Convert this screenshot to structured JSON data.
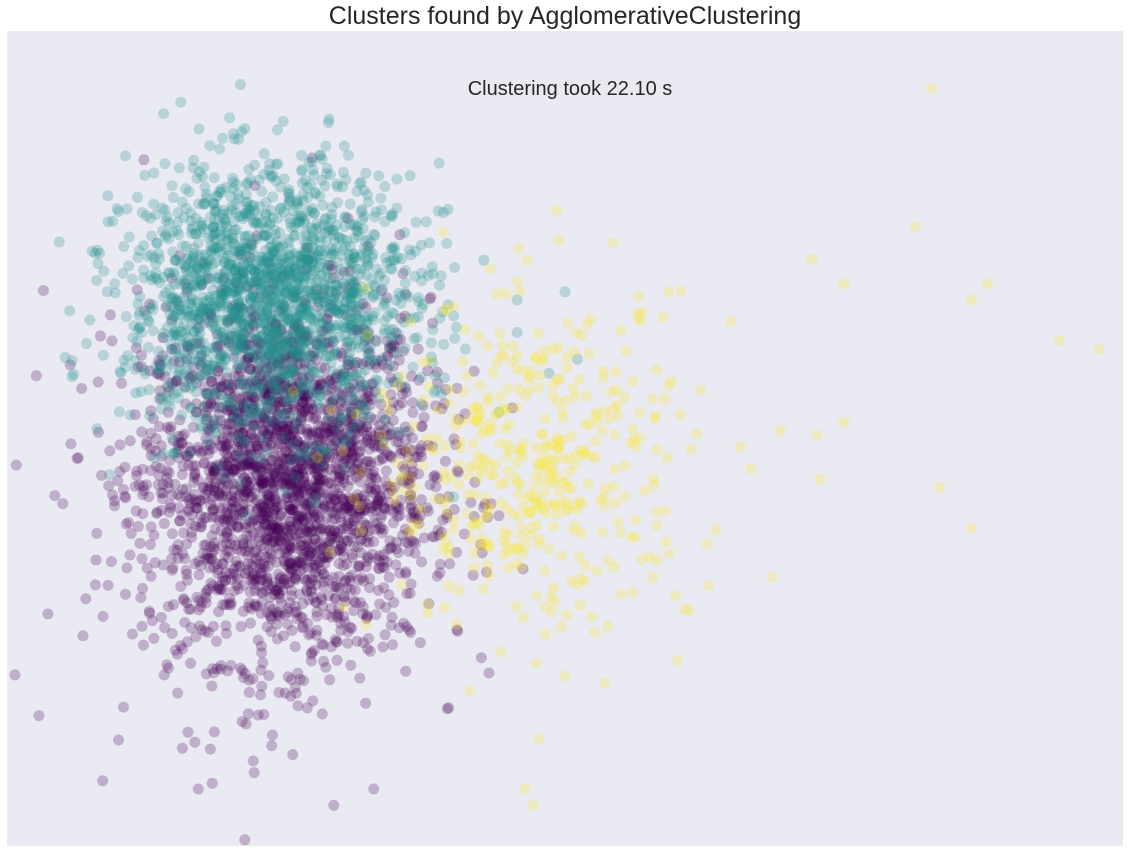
{
  "chart_data": {
    "type": "scatter",
    "title": "Clusters found by AgglomerativeClustering",
    "annotation": "Clustering took 22.10 s",
    "xlabel": "",
    "ylabel": "",
    "axes_visible": false,
    "grid": false,
    "xlim": [
      -0.6,
      0.8
    ],
    "ylim": [
      -0.45,
      0.55
    ],
    "background": "#eaeaf2",
    "point_alpha": 0.25,
    "series": [
      {
        "color": "#440154",
        "center": [
          -0.25,
          0.0
        ],
        "count": 2500,
        "spread": [
          0.09,
          0.11
        ],
        "points": [
          [
            -0.59,
            -0.24
          ],
          [
            -0.56,
            -0.29
          ],
          [
            -0.54,
            -0.02
          ],
          [
            -0.53,
            -0.03
          ],
          [
            -0.48,
            -0.37
          ],
          [
            -0.46,
            -0.32
          ],
          [
            -0.38,
            -0.33
          ],
          [
            -0.36,
            -0.38
          ],
          [
            -0.34,
            -0.31
          ],
          [
            -0.3,
            -0.3
          ],
          [
            -0.29,
            -0.36
          ],
          [
            -0.14,
            -0.38
          ],
          [
            -0.19,
            -0.4
          ]
        ]
      },
      {
        "color": "#21918c",
        "center": [
          -0.27,
          0.22
        ],
        "count": 1800,
        "spread": [
          0.09,
          0.08
        ],
        "points": [
          [
            -0.34,
            0.37
          ],
          [
            -0.38,
            0.34
          ],
          [
            -0.42,
            0.32
          ],
          [
            -0.36,
            0.29
          ],
          [
            -0.3,
            0.34
          ],
          [
            -0.26,
            0.32
          ],
          [
            -0.2,
            0.32
          ],
          [
            -0.16,
            0.31
          ],
          [
            -0.07,
            0.29
          ],
          [
            0.04,
            0.22
          ],
          [
            0.1,
            0.23
          ],
          [
            0.04,
            0.18
          ],
          [
            0.08,
            0.13
          ]
        ]
      },
      {
        "color": "#fde725",
        "center": [
          0.06,
          0.02
        ],
        "count": 450,
        "spread": [
          0.1,
          0.1
        ],
        "points": [
          [
            0.56,
            0.48
          ],
          [
            0.54,
            0.31
          ],
          [
            0.63,
            0.24
          ],
          [
            0.61,
            0.22
          ],
          [
            0.77,
            0.16
          ],
          [
            0.72,
            0.17
          ],
          [
            0.45,
            0.07
          ],
          [
            0.45,
            0.24
          ],
          [
            0.41,
            0.27
          ],
          [
            0.37,
            0.06
          ],
          [
            0.32,
            0.04
          ],
          [
            0.42,
            0.0
          ],
          [
            0.57,
            -0.01
          ],
          [
            0.61,
            -0.06
          ],
          [
            0.36,
            -0.12
          ],
          [
            0.28,
            -0.13
          ],
          [
            0.15,
            -0.25
          ],
          [
            0.25,
            -0.16
          ],
          [
            0.06,
            -0.4
          ],
          [
            0.05,
            -0.38
          ],
          [
            0.09,
            0.33
          ],
          [
            0.16,
            0.29
          ],
          [
            0.23,
            0.23
          ]
        ]
      }
    ]
  }
}
